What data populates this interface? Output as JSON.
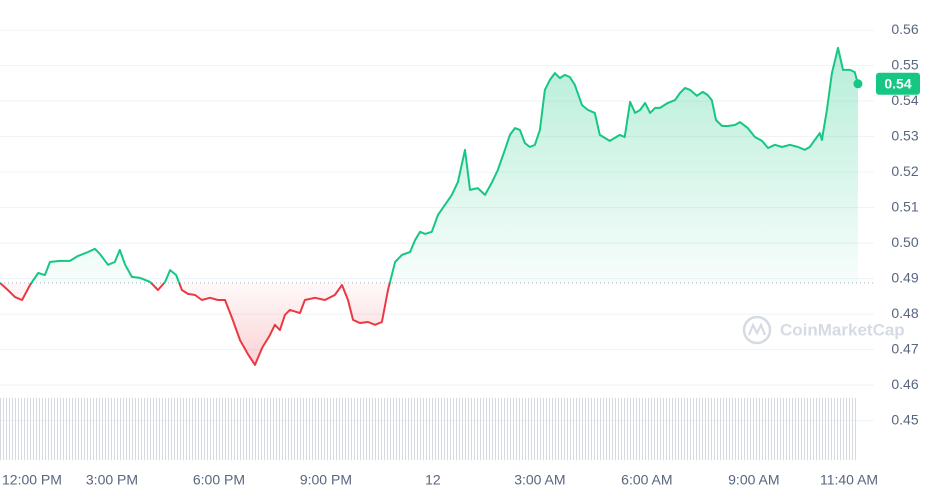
{
  "chart_data": {
    "type": "line",
    "x": [
      11.86,
      12.08,
      12.28,
      12.48,
      12.7,
      12.93,
      13.12,
      13.26,
      13.54,
      13.82,
      14.05,
      14.33,
      14.52,
      14.66,
      14.89,
      15.08,
      15.22,
      15.37,
      15.56,
      15.79,
      16.07,
      16.29,
      16.49,
      16.63,
      16.8,
      16.96,
      17.13,
      17.33,
      17.52,
      17.75,
      17.97,
      18.17,
      18.37,
      18.59,
      18.81,
      19.01,
      19.21,
      19.43,
      19.57,
      19.71,
      19.85,
      19.99,
      20.27,
      20.41,
      20.69,
      20.97,
      21.25,
      21.45,
      21.62,
      21.76,
      21.95,
      22.18,
      22.38,
      22.57,
      22.74,
      22.94,
      23.13,
      23.36,
      23.5,
      23.64,
      23.78,
      23.97,
      24.14,
      24.34,
      24.53,
      24.7,
      24.9,
      25.04,
      25.26,
      25.46,
      25.66,
      25.82,
      26.02,
      26.16,
      26.3,
      26.44,
      26.58,
      26.72,
      26.86,
      27.0,
      27.14,
      27.28,
      27.42,
      27.56,
      27.7,
      27.84,
      27.98,
      28.18,
      28.35,
      28.54,
      28.68,
      28.96,
      29.24,
      29.38,
      29.53,
      29.67,
      29.81,
      29.95,
      30.09,
      30.23,
      30.37,
      30.59,
      30.79,
      30.93,
      31.07,
      31.21,
      31.4,
      31.57,
      31.71,
      31.82,
      31.94,
      32.11,
      32.27,
      32.47,
      32.61,
      32.83,
      33.03,
      33.23,
      33.4,
      33.59,
      33.79,
      34.01,
      34.24,
      34.43,
      34.57,
      34.71,
      34.85,
      34.91,
      35.05,
      35.19,
      35.36,
      35.5,
      35.7,
      35.83,
      35.92
    ],
    "values": [
      0.4888,
      0.4868,
      0.4848,
      0.484,
      0.4882,
      0.4916,
      0.491,
      0.4947,
      0.495,
      0.495,
      0.4964,
      0.4975,
      0.4984,
      0.497,
      0.4939,
      0.4947,
      0.4981,
      0.4939,
      0.4905,
      0.4902,
      0.4891,
      0.4868,
      0.4891,
      0.4924,
      0.491,
      0.4868,
      0.4857,
      0.4854,
      0.484,
      0.4846,
      0.484,
      0.484,
      0.4789,
      0.4727,
      0.4688,
      0.4657,
      0.4705,
      0.4741,
      0.477,
      0.4755,
      0.4798,
      0.4812,
      0.4803,
      0.484,
      0.4846,
      0.484,
      0.4854,
      0.4882,
      0.484,
      0.4784,
      0.4775,
      0.4778,
      0.477,
      0.4778,
      0.4868,
      0.4947,
      0.4967,
      0.4975,
      0.5009,
      0.5032,
      0.5026,
      0.5032,
      0.5079,
      0.5108,
      0.5136,
      0.5172,
      0.5263,
      0.515,
      0.5155,
      0.5136,
      0.5172,
      0.5206,
      0.5263,
      0.5305,
      0.5324,
      0.5319,
      0.5282,
      0.5271,
      0.5277,
      0.5319,
      0.5432,
      0.546,
      0.5479,
      0.5465,
      0.5474,
      0.5468,
      0.5446,
      0.5389,
      0.5375,
      0.5367,
      0.5305,
      0.5288,
      0.5305,
      0.5299,
      0.5398,
      0.5367,
      0.5375,
      0.5395,
      0.5367,
      0.5381,
      0.5381,
      0.5395,
      0.5403,
      0.5423,
      0.5437,
      0.5432,
      0.5415,
      0.5426,
      0.5417,
      0.5403,
      0.5347,
      0.533,
      0.533,
      0.5333,
      0.5341,
      0.5324,
      0.5299,
      0.5288,
      0.5268,
      0.5277,
      0.5271,
      0.5277,
      0.5271,
      0.5263,
      0.5271,
      0.5291,
      0.531,
      0.5291,
      0.5375,
      0.5479,
      0.555,
      0.5488,
      0.5488,
      0.5482,
      0.5449
    ],
    "reference_line": 0.4888,
    "up_color": "#16c784",
    "down_color": "#ea3943",
    "current_price_label": "0.54",
    "watermark": "CoinMarketCap",
    "xlim": [
      11.86,
      36.37
    ],
    "xticks": [
      {
        "value": 12,
        "label": "12:00 PM"
      },
      {
        "value": 15,
        "label": "3:00 PM"
      },
      {
        "value": 18,
        "label": "6:00 PM"
      },
      {
        "value": 21,
        "label": "9:00 PM"
      },
      {
        "value": 24,
        "label": "12"
      },
      {
        "value": 27,
        "label": "3:00 AM"
      },
      {
        "value": 30,
        "label": "6:00 AM"
      },
      {
        "value": 33,
        "label": "9:00 AM"
      },
      {
        "value": 35.67,
        "label": "11:40 AM"
      }
    ],
    "ylim": [
      0.443,
      0.5685
    ],
    "yticks": [
      0.45,
      0.46,
      0.47,
      0.48,
      0.49,
      {
        "value": 0.5,
        "label": "0.50"
      },
      0.51,
      0.52,
      0.53,
      0.54,
      0.55,
      0.56
    ],
    "grid": true
  }
}
